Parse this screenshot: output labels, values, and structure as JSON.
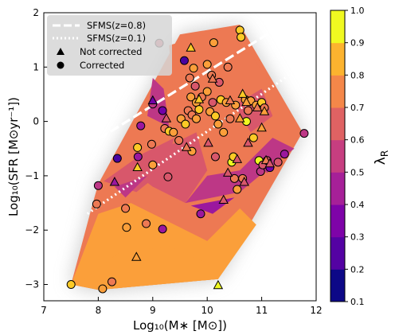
{
  "chart_data": {
    "type": "scatter",
    "title": "",
    "xlabel": "Log₁₀(M∗ [M⊙])",
    "ylabel": "Log₁₀(SFR [M⊙yr⁻¹])",
    "xlim": [
      7,
      12
    ],
    "ylim": [
      -3.3,
      2
    ],
    "x_ticks": [
      "7",
      "8",
      "9",
      "10",
      "11",
      "12"
    ],
    "y_ticks": [
      "2",
      "1",
      "0",
      "−1",
      "−2",
      "−3"
    ],
    "grid": false,
    "colormap": "plasma",
    "colorbar": {
      "label": "λ",
      "label_subscript": "R",
      "range": [
        0.1,
        1.0
      ],
      "ticks": [
        "0.1",
        "0.2",
        "0.3",
        "0.4",
        "0.5",
        "0.6",
        "0.7",
        "0.8",
        "0.9",
        "1.0"
      ]
    },
    "legend": {
      "placement": "top-left",
      "entries": [
        {
          "label": "SFMS(z=0.8)",
          "style": "dashed-line"
        },
        {
          "label": "SFMS(z=0.1)",
          "style": "dotted-line"
        },
        {
          "label": "Not corrected",
          "style": "triangle"
        },
        {
          "label": "Corrected",
          "style": "circle"
        }
      ]
    },
    "sfms_lines": [
      {
        "name": "SFMS(z=0.8)",
        "points": [
          [
            7.8,
            -0.45
          ],
          [
            11.5,
            1.85
          ]
        ]
      },
      {
        "name": "SFMS(z=0.1)",
        "points": [
          [
            7.8,
            -1.7
          ],
          [
            11.5,
            0.85
          ]
        ]
      }
    ],
    "contour_hull": [
      [
        7.5,
        -3.0
      ],
      [
        7.9,
        -1.5
      ],
      [
        8.0,
        -1.15
      ],
      [
        9.5,
        1.6
      ],
      [
        10.6,
        1.78
      ],
      [
        11.75,
        -0.2
      ],
      [
        10.2,
        -2.9
      ],
      [
        8.0,
        -3.1
      ]
    ],
    "contour_levels": [
      {
        "lambda": 0.65,
        "polygon": [
          [
            7.5,
            -3.0
          ],
          [
            7.9,
            -1.5
          ],
          [
            8.0,
            -1.15
          ],
          [
            9.5,
            1.6
          ],
          [
            10.6,
            1.78
          ],
          [
            11.75,
            -0.2
          ],
          [
            10.2,
            -2.9
          ],
          [
            8.0,
            -3.1
          ]
        ]
      },
      {
        "lambda": 0.75,
        "polygon": [
          [
            7.5,
            -3.0
          ],
          [
            8.0,
            -1.7
          ],
          [
            8.6,
            -1.5
          ],
          [
            9.4,
            -1.9
          ],
          [
            10.0,
            -2.2
          ],
          [
            10.6,
            -1.6
          ],
          [
            10.9,
            -1.9
          ],
          [
            10.2,
            -2.9
          ],
          [
            8.0,
            -3.1
          ]
        ]
      },
      {
        "lambda": 0.8,
        "polygon": [
          [
            7.6,
            -3.0
          ],
          [
            8.4,
            -2.4
          ],
          [
            9.3,
            -2.3
          ],
          [
            10.0,
            -2.6
          ],
          [
            10.2,
            -2.9
          ],
          [
            8.0,
            -3.1
          ]
        ]
      },
      {
        "lambda": 0.72,
        "polygon": [
          [
            9.3,
            1.4
          ],
          [
            10.5,
            1.75
          ],
          [
            11.2,
            0.6
          ],
          [
            10.9,
            0.1
          ],
          [
            10.3,
            0.2
          ],
          [
            9.7,
            -0.6
          ],
          [
            9.4,
            0.2
          ]
        ]
      },
      {
        "lambda": 0.62,
        "polygon": [
          [
            8.6,
            -0.9
          ],
          [
            9.2,
            -0.5
          ],
          [
            9.8,
            -0.2
          ],
          [
            10.0,
            -0.9
          ],
          [
            9.6,
            -1.5
          ],
          [
            9.0,
            -1.2
          ]
        ]
      },
      {
        "lambda": 0.55,
        "polygon": [
          [
            8.1,
            -1.1
          ],
          [
            8.8,
            -0.6
          ],
          [
            9.4,
            -0.3
          ],
          [
            9.2,
            -0.9
          ],
          [
            8.7,
            -1.3
          ]
        ]
      },
      {
        "lambda": 0.5,
        "polygon": [
          [
            8.9,
            0.1
          ],
          [
            9.0,
            0.8
          ],
          [
            9.2,
            0.6
          ],
          [
            9.3,
            -0.1
          ]
        ]
      },
      {
        "lambda": 0.48,
        "polygon": [
          [
            8.3,
            -1.2
          ],
          [
            8.9,
            -1.0
          ],
          [
            8.5,
            -1.4
          ]
        ]
      },
      {
        "lambda": 0.52,
        "polygon": [
          [
            9.6,
            -1.5
          ],
          [
            10.6,
            -1.3
          ],
          [
            11.2,
            -0.8
          ],
          [
            11.6,
            -0.5
          ],
          [
            11.2,
            -0.3
          ],
          [
            10.6,
            -0.9
          ],
          [
            10.0,
            -1.0
          ]
        ]
      },
      {
        "lambda": 0.45,
        "polygon": [
          [
            9.7,
            -1.55
          ],
          [
            10.5,
            -1.4
          ],
          [
            10.1,
            -1.7
          ]
        ]
      },
      {
        "lambda": 0.48,
        "polygon": [
          [
            10.8,
            -0.7
          ],
          [
            11.5,
            -0.5
          ],
          [
            11.1,
            -0.95
          ]
        ]
      },
      {
        "lambda": 0.6,
        "polygon": [
          [
            10.5,
            0.3
          ],
          [
            11.0,
            0.6
          ],
          [
            11.2,
            0.1
          ],
          [
            10.8,
            -0.2
          ]
        ]
      }
    ],
    "series": [
      {
        "name": "Corrected",
        "marker": "circle",
        "points": [
          {
            "x": 7.5,
            "y": -3.0,
            "c": 0.88
          },
          {
            "x": 8.08,
            "y": -3.08,
            "c": 0.78
          },
          {
            "x": 8.25,
            "y": -2.95,
            "c": 0.65
          },
          {
            "x": 8.52,
            "y": -1.95,
            "c": 0.78
          },
          {
            "x": 8.88,
            "y": -1.88,
            "c": 0.7
          },
          {
            "x": 9.18,
            "y": -1.98,
            "c": 0.38
          },
          {
            "x": 7.97,
            "y": -1.52,
            "c": 0.72
          },
          {
            "x": 8.5,
            "y": -1.6,
            "c": 0.7
          },
          {
            "x": 8.0,
            "y": -1.18,
            "c": 0.5
          },
          {
            "x": 8.35,
            "y": -0.68,
            "c": 0.22
          },
          {
            "x": 8.73,
            "y": -0.65,
            "c": 0.4
          },
          {
            "x": 8.72,
            "y": -0.48,
            "c": 0.85
          },
          {
            "x": 8.78,
            "y": -0.08,
            "c": 0.42
          },
          {
            "x": 8.98,
            "y": -0.42,
            "c": 0.72
          },
          {
            "x": 9.0,
            "y": -0.8,
            "c": 0.8
          },
          {
            "x": 9.0,
            "y": 0.32,
            "c": 0.5
          },
          {
            "x": 9.12,
            "y": 1.44,
            "c": 0.62
          },
          {
            "x": 9.18,
            "y": 0.2,
            "c": 0.3
          },
          {
            "x": 9.22,
            "y": -0.13,
            "c": 0.7
          },
          {
            "x": 9.3,
            "y": -0.18,
            "c": 0.88
          },
          {
            "x": 9.28,
            "y": -1.02,
            "c": 0.62
          },
          {
            "x": 9.38,
            "y": -0.2,
            "c": 0.8
          },
          {
            "x": 9.48,
            "y": -0.35,
            "c": 0.72
          },
          {
            "x": 9.52,
            "y": 0.05,
            "c": 0.8
          },
          {
            "x": 9.58,
            "y": 1.12,
            "c": 0.25
          },
          {
            "x": 9.6,
            "y": -0.05,
            "c": 0.85
          },
          {
            "x": 9.65,
            "y": 0.2,
            "c": 0.7
          },
          {
            "x": 9.68,
            "y": 0.8,
            "c": 0.66
          },
          {
            "x": 9.7,
            "y": 0.45,
            "c": 0.82
          },
          {
            "x": 9.72,
            "y": 0.12,
            "c": 0.72
          },
          {
            "x": 9.72,
            "y": -0.55,
            "c": 0.8
          },
          {
            "x": 9.75,
            "y": 0.98,
            "c": 0.78
          },
          {
            "x": 9.78,
            "y": 0.65,
            "c": 0.6
          },
          {
            "x": 9.8,
            "y": 0.35,
            "c": 0.8
          },
          {
            "x": 9.8,
            "y": 0.05,
            "c": 0.78
          },
          {
            "x": 9.85,
            "y": 0.22,
            "c": 0.9
          },
          {
            "x": 9.88,
            "y": -1.7,
            "c": 0.4
          },
          {
            "x": 9.9,
            "y": 0.45,
            "c": 0.72
          },
          {
            "x": 10.0,
            "y": 0.55,
            "c": 0.82
          },
          {
            "x": 10.0,
            "y": 1.05,
            "c": 0.75
          },
          {
            "x": 10.05,
            "y": 0.18,
            "c": 0.8
          },
          {
            "x": 10.08,
            "y": 0.85,
            "c": 0.72
          },
          {
            "x": 10.1,
            "y": 0.35,
            "c": 0.62
          },
          {
            "x": 10.12,
            "y": 1.45,
            "c": 0.78
          },
          {
            "x": 10.15,
            "y": -0.65,
            "c": 0.6
          },
          {
            "x": 10.15,
            "y": 0.1,
            "c": 0.85
          },
          {
            "x": 10.2,
            "y": -0.05,
            "c": 0.82
          },
          {
            "x": 10.22,
            "y": 0.72,
            "c": 0.58
          },
          {
            "x": 10.25,
            "y": 0.4,
            "c": 0.88
          },
          {
            "x": 10.3,
            "y": -0.2,
            "c": 0.75
          },
          {
            "x": 10.35,
            "y": 0.35,
            "c": 0.8
          },
          {
            "x": 10.38,
            "y": 1.0,
            "c": 0.7
          },
          {
            "x": 10.42,
            "y": 0.05,
            "c": 0.72
          },
          {
            "x": 10.45,
            "y": -0.75,
            "c": 0.92
          },
          {
            "x": 10.48,
            "y": -0.65,
            "c": 0.85
          },
          {
            "x": 10.5,
            "y": -1.05,
            "c": 0.72
          },
          {
            "x": 10.52,
            "y": 0.3,
            "c": 0.8
          },
          {
            "x": 10.55,
            "y": -1.25,
            "c": 0.82
          },
          {
            "x": 10.6,
            "y": 1.68,
            "c": 0.84
          },
          {
            "x": 10.62,
            "y": 1.55,
            "c": 0.9
          },
          {
            "x": 10.65,
            "y": -1.05,
            "c": 0.7
          },
          {
            "x": 10.7,
            "y": 0.4,
            "c": 0.78
          },
          {
            "x": 10.72,
            "y": 0.0,
            "c": 0.92
          },
          {
            "x": 10.75,
            "y": 0.2,
            "c": 0.7
          },
          {
            "x": 10.8,
            "y": 0.38,
            "c": 0.82
          },
          {
            "x": 10.85,
            "y": -0.3,
            "c": 0.9
          },
          {
            "x": 10.9,
            "y": 0.3,
            "c": 0.75
          },
          {
            "x": 10.95,
            "y": -0.72,
            "c": 0.95
          },
          {
            "x": 10.98,
            "y": -0.92,
            "c": 0.5
          },
          {
            "x": 11.0,
            "y": 0.35,
            "c": 0.9
          },
          {
            "x": 11.02,
            "y": -0.8,
            "c": 0.62
          },
          {
            "x": 11.05,
            "y": 0.25,
            "c": 0.65
          },
          {
            "x": 11.1,
            "y": -0.72,
            "c": 0.55
          },
          {
            "x": 11.15,
            "y": -0.85,
            "c": 0.35
          },
          {
            "x": 11.3,
            "y": -0.75,
            "c": 0.62
          },
          {
            "x": 11.42,
            "y": -0.6,
            "c": 0.45
          },
          {
            "x": 11.78,
            "y": -0.22,
            "c": 0.52
          }
        ]
      },
      {
        "name": "Not corrected",
        "marker": "triangle",
        "points": [
          {
            "x": 8.3,
            "y": -1.12,
            "c": 0.42
          },
          {
            "x": 8.72,
            "y": -0.85,
            "c": 0.88
          },
          {
            "x": 8.7,
            "y": -2.5,
            "c": 0.78
          },
          {
            "x": 9.0,
            "y": 0.38,
            "c": 0.32
          },
          {
            "x": 9.25,
            "y": 0.05,
            "c": 0.6
          },
          {
            "x": 9.62,
            "y": -0.48,
            "c": 0.7
          },
          {
            "x": 9.7,
            "y": 1.35,
            "c": 0.88
          },
          {
            "x": 9.85,
            "y": 0.4,
            "c": 0.9
          },
          {
            "x": 10.02,
            "y": -0.4,
            "c": 0.55
          },
          {
            "x": 10.1,
            "y": 0.78,
            "c": 0.7
          },
          {
            "x": 10.2,
            "y": -3.02,
            "c": 0.95
          },
          {
            "x": 10.3,
            "y": -1.45,
            "c": 0.55
          },
          {
            "x": 10.38,
            "y": -0.95,
            "c": 0.62
          },
          {
            "x": 10.42,
            "y": 0.38,
            "c": 0.72
          },
          {
            "x": 10.55,
            "y": -0.7,
            "c": 0.58
          },
          {
            "x": 10.6,
            "y": 0.05,
            "c": 0.8
          },
          {
            "x": 10.65,
            "y": 0.5,
            "c": 0.88
          },
          {
            "x": 10.68,
            "y": -1.12,
            "c": 0.55
          },
          {
            "x": 10.72,
            "y": 0.35,
            "c": 0.75
          },
          {
            "x": 10.75,
            "y": -0.4,
            "c": 0.62
          },
          {
            "x": 10.92,
            "y": 0.25,
            "c": 0.7
          },
          {
            "x": 11.0,
            "y": -0.12,
            "c": 0.8
          },
          {
            "x": 11.05,
            "y": 0.18,
            "c": 0.78
          },
          {
            "x": 11.08,
            "y": -0.72,
            "c": 0.65
          },
          {
            "x": 11.15,
            "y": -0.78,
            "c": 0.6
          }
        ]
      }
    ]
  }
}
